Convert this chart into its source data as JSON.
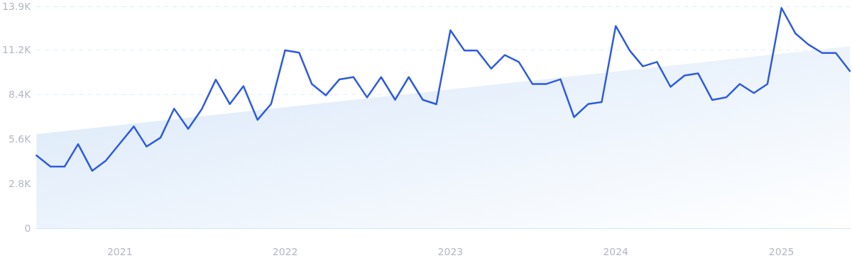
{
  "chart_data": {
    "type": "line",
    "x": [
      "2020-07",
      "2020-08",
      "2020-09",
      "2020-10",
      "2020-11",
      "2020-12",
      "2021-01",
      "2021-02",
      "2021-03",
      "2021-04",
      "2021-05",
      "2021-06",
      "2021-07",
      "2021-08",
      "2021-09",
      "2021-10",
      "2021-11",
      "2021-12",
      "2022-01",
      "2022-02",
      "2022-03",
      "2022-04",
      "2022-05",
      "2022-06",
      "2022-07",
      "2022-08",
      "2022-09",
      "2022-10",
      "2022-11",
      "2022-12",
      "2023-01",
      "2023-02",
      "2023-03",
      "2023-04",
      "2023-05",
      "2023-06",
      "2023-07",
      "2023-08",
      "2023-09",
      "2023-10",
      "2023-11",
      "2023-12",
      "2024-01",
      "2024-02",
      "2024-03",
      "2024-04",
      "2024-05",
      "2024-06",
      "2024-07",
      "2024-08",
      "2024-09",
      "2024-10",
      "2024-11",
      "2024-12",
      "2025-01",
      "2025-02",
      "2025-03",
      "2025-04",
      "2025-05",
      "2025-06"
    ],
    "series": [
      {
        "type": "area",
        "color": "#d8e7f9",
        "x": [
          "2020-07",
          "2025-06"
        ],
        "values": [
          5900,
          11400
        ]
      },
      {
        "color": "#2d5be0",
        "values": [
          4560,
          3860,
          3860,
          5270,
          3600,
          4230,
          5310,
          6380,
          5120,
          5680,
          7490,
          6230,
          7460,
          9310,
          7780,
          8900,
          6790,
          7780,
          11150,
          11000,
          9040,
          8330,
          9330,
          9470,
          8200,
          9470,
          8050,
          9470,
          8050,
          7770,
          12400,
          11130,
          11130,
          10000,
          10850,
          10420,
          9040,
          9040,
          9330,
          6960,
          7780,
          7900,
          12670,
          11130,
          10140,
          10420,
          8860,
          9570,
          9700,
          8040,
          8200,
          9040,
          8470,
          9040,
          13800,
          12200,
          11520,
          10980,
          10980,
          9850
        ]
      }
    ],
    "xlim": [
      "2020-07",
      "2025-06"
    ],
    "xticks": [
      "2021",
      "2022",
      "2023",
      "2024",
      "2025"
    ],
    "ylim": [
      0,
      13900
    ],
    "yticks": [
      0,
      {
        "value": 2800,
        "label": "2.8K"
      },
      {
        "value": 5600,
        "label": "5.6K"
      },
      {
        "value": 8400,
        "label": "8.4K"
      },
      {
        "value": 11200,
        "label": "11.2K"
      },
      {
        "value": 13900,
        "label": "13.9K"
      }
    ],
    "grid": "y",
    "marker": "none",
    "line_style": "solid"
  }
}
